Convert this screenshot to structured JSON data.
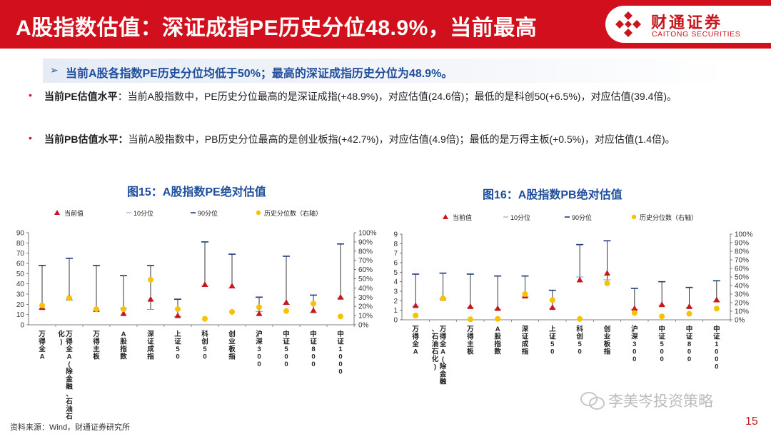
{
  "header": {
    "title": "A股指数估值：深证成指PE历史分位48.9%，当前最高",
    "logo_cn": "财通证券",
    "logo_en": "CAITONG SECURITIES",
    "logo_icon": "caitong-logo-icon",
    "bar_color": "#d20f1c"
  },
  "highlight": {
    "arrow": "➢",
    "text": "当前A股各指数PE历史分位均低于50%；最高的深证成指历史分位为48.9%。"
  },
  "bullets": [
    {
      "marker": "•",
      "label": "当前PE估值水平",
      "text": "：当前A股指数中，PE历史分位最高的是深证成指(+48.9%)，对应估值(24.6倍)；最低的是科创50(+6.5%)，对应估值(39.4倍)。"
    },
    {
      "marker": "•",
      "label": "当前PB估值水平：",
      "text": "当前A股指数中，PB历史分位最高的是创业板指(+42.7%)，对应估值(4.9倍)；最低的是万得主板(+0.5%)，对应估值(1.4倍)。"
    }
  ],
  "legend": {
    "current": "当前值",
    "p10": "10分位",
    "p90": "90分位",
    "pct": "历史分位数（右轴）"
  },
  "chart_data": [
    {
      "type": "scatter",
      "title": "图15：A股指数PE绝对估值",
      "categories": [
        "万得全A",
        "万得全A(除金融、石油石化)",
        "万得主板",
        "A股指数",
        "深证成指",
        "上证50",
        "科创50",
        "创业板指",
        "沪深300",
        "中证500",
        "中证800",
        "中证1000"
      ],
      "series": [
        {
          "name": "当前值",
          "values": [
            17,
            27,
            15,
            11,
            25,
            9,
            39.4,
            38,
            11,
            22,
            14,
            27
          ]
        },
        {
          "name": "10分位",
          "values": [
            16,
            24,
            14,
            16,
            15,
            8,
            38,
            36,
            13,
            20,
            12,
            26
          ]
        },
        {
          "name": "90分位",
          "values": [
            58,
            65,
            58,
            48,
            58,
            25,
            81,
            69,
            27,
            67,
            29,
            79
          ]
        },
        {
          "name": "历史分位数（右轴）",
          "values": [
            0.21,
            0.29,
            0.17,
            0.17,
            0.489,
            0.17,
            0.065,
            0.14,
            0.19,
            0.15,
            0.23,
            0.09
          ]
        }
      ],
      "ylim": [
        0,
        90
      ],
      "yticks": [
        "0",
        "10",
        "20",
        "30",
        "40",
        "50",
        "60",
        "70",
        "80",
        "90"
      ],
      "y2lim": [
        0,
        1
      ],
      "y2ticks": [
        "0%",
        "10%",
        "20%",
        "30%",
        "40%",
        "50%",
        "60%",
        "70%",
        "80%",
        "90%",
        "100%"
      ],
      "legend_position": "top",
      "colors": {
        "current": "#c8161d",
        "p10": "#7aa0d6",
        "p90": "#1f3a7a",
        "pct": "#f6c300"
      }
    },
    {
      "type": "scatter",
      "title": "图16：A股指数PB绝对估值",
      "categories": [
        "万得全A",
        "万得全A(除金融、石油石化)",
        "万得主板",
        "A股指数",
        "深证成指",
        "上证50",
        "科创50",
        "创业板指",
        "沪深300",
        "中证500",
        "中证800",
        "中证1000"
      ],
      "series": [
        {
          "name": "当前值",
          "values": [
            1.5,
            2.3,
            1.4,
            1.2,
            2.5,
            1.3,
            4.2,
            4.9,
            1.2,
            1.6,
            1.4,
            2.1
          ]
        },
        {
          "name": "10分位",
          "values": [
            1.4,
            2.2,
            1.3,
            1.1,
            2.4,
            1.2,
            4.5,
            4.2,
            1.1,
            1.5,
            1.3,
            1.9
          ]
        },
        {
          "name": "90分位",
          "values": [
            4.8,
            4.9,
            4.8,
            4.6,
            4.6,
            3.1,
            7.9,
            8.3,
            3.3,
            4.0,
            3.4,
            4.1
          ]
        },
        {
          "name": "历史分位数（右轴）",
          "values": [
            0.05,
            0.25,
            0.005,
            0.01,
            0.3,
            0.23,
            0.01,
            0.427,
            0.08,
            0.04,
            0.07,
            0.13
          ]
        }
      ],
      "ylim": [
        0,
        9
      ],
      "yticks": [
        "0",
        "1",
        "2",
        "3",
        "4",
        "5",
        "6",
        "7",
        "8",
        "9"
      ],
      "y2lim": [
        0,
        1
      ],
      "y2ticks": [
        "0%",
        "10%",
        "20%",
        "30%",
        "40%",
        "50%",
        "60%",
        "70%",
        "80%",
        "90%",
        "100%"
      ],
      "legend_position": "top",
      "colors": {
        "current": "#c8161d",
        "p10": "#7aa0d6",
        "p90": "#1f3a7a",
        "pct": "#f6c300"
      }
    }
  ],
  "footer": {
    "source": "资料来源：Wind，财通证券研究所",
    "watermark": "李美岑投资策略",
    "watermark_icon": "wechat-icon",
    "page": "15"
  }
}
